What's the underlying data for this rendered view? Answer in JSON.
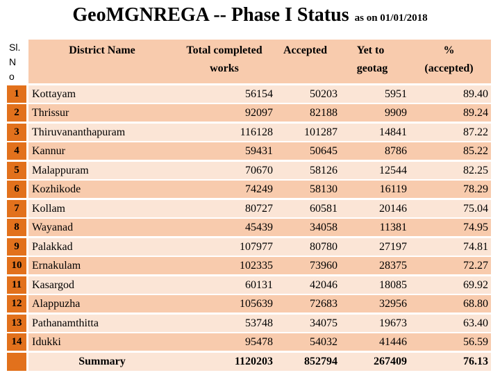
{
  "title": {
    "main": "GeoMGNREGA -- Phase I Status",
    "suffix": "as on  01/01/2018"
  },
  "colors": {
    "orange": "#E2711C",
    "band_light": "#FBE5D6",
    "band_medium": "#F8CBAD",
    "header_bg": "#F8CBAD"
  },
  "table": {
    "header": {
      "sl_lines": [
        "Sl.",
        "N",
        "o"
      ],
      "district": "District Name",
      "total_line1": "Total completed",
      "total_line2": "works",
      "accepted": "Accepted",
      "yetto_line1": "Yet to",
      "yetto_line2": "geotag",
      "pct_line1": "%",
      "pct_line2": "(accepted)"
    },
    "rows": [
      {
        "sl": "1",
        "district": "Kottayam",
        "total": "56154",
        "accepted": "50203",
        "yetto": "5951",
        "pct": "89.40"
      },
      {
        "sl": "2",
        "district": "Thrissur",
        "total": "92097",
        "accepted": "82188",
        "yetto": "9909",
        "pct": "89.24"
      },
      {
        "sl": "3",
        "district": "Thiruvananthapuram",
        "total": "116128",
        "accepted": "101287",
        "yetto": "14841",
        "pct": "87.22"
      },
      {
        "sl": "4",
        "district": "Kannur",
        "total": "59431",
        "accepted": "50645",
        "yetto": "8786",
        "pct": "85.22"
      },
      {
        "sl": "5",
        "district": "Malappuram",
        "total": "70670",
        "accepted": "58126",
        "yetto": "12544",
        "pct": "82.25"
      },
      {
        "sl": "6",
        "district": "Kozhikode",
        "total": "74249",
        "accepted": "58130",
        "yetto": "16119",
        "pct": "78.29"
      },
      {
        "sl": "7",
        "district": "Kollam",
        "total": "80727",
        "accepted": "60581",
        "yetto": "20146",
        "pct": "75.04"
      },
      {
        "sl": "8",
        "district": "Wayanad",
        "total": "45439",
        "accepted": "34058",
        "yetto": "11381",
        "pct": "74.95"
      },
      {
        "sl": "9",
        "district": "Palakkad",
        "total": "107977",
        "accepted": "80780",
        "yetto": "27197",
        "pct": "74.81"
      },
      {
        "sl": "10",
        "district": "Ernakulam",
        "total": "102335",
        "accepted": "73960",
        "yetto": "28375",
        "pct": "72.27"
      },
      {
        "sl": "11",
        "district": "Kasargod",
        "total": "60131",
        "accepted": "42046",
        "yetto": "18085",
        "pct": "69.92"
      },
      {
        "sl": "12",
        "district": "Alappuzha",
        "total": "105639",
        "accepted": "72683",
        "yetto": "32956",
        "pct": "68.80"
      },
      {
        "sl": "13",
        "district": "Pathanamthitta",
        "total": "53748",
        "accepted": "34075",
        "yetto": "19673",
        "pct": "63.40"
      },
      {
        "sl": "14",
        "district": "Idukki",
        "total": "95478",
        "accepted": "54032",
        "yetto": "41446",
        "pct": "56.59"
      }
    ],
    "summary": {
      "label": "Summary",
      "total": "1120203",
      "accepted": "852794",
      "yetto": "267409",
      "pct": "76.13"
    }
  }
}
